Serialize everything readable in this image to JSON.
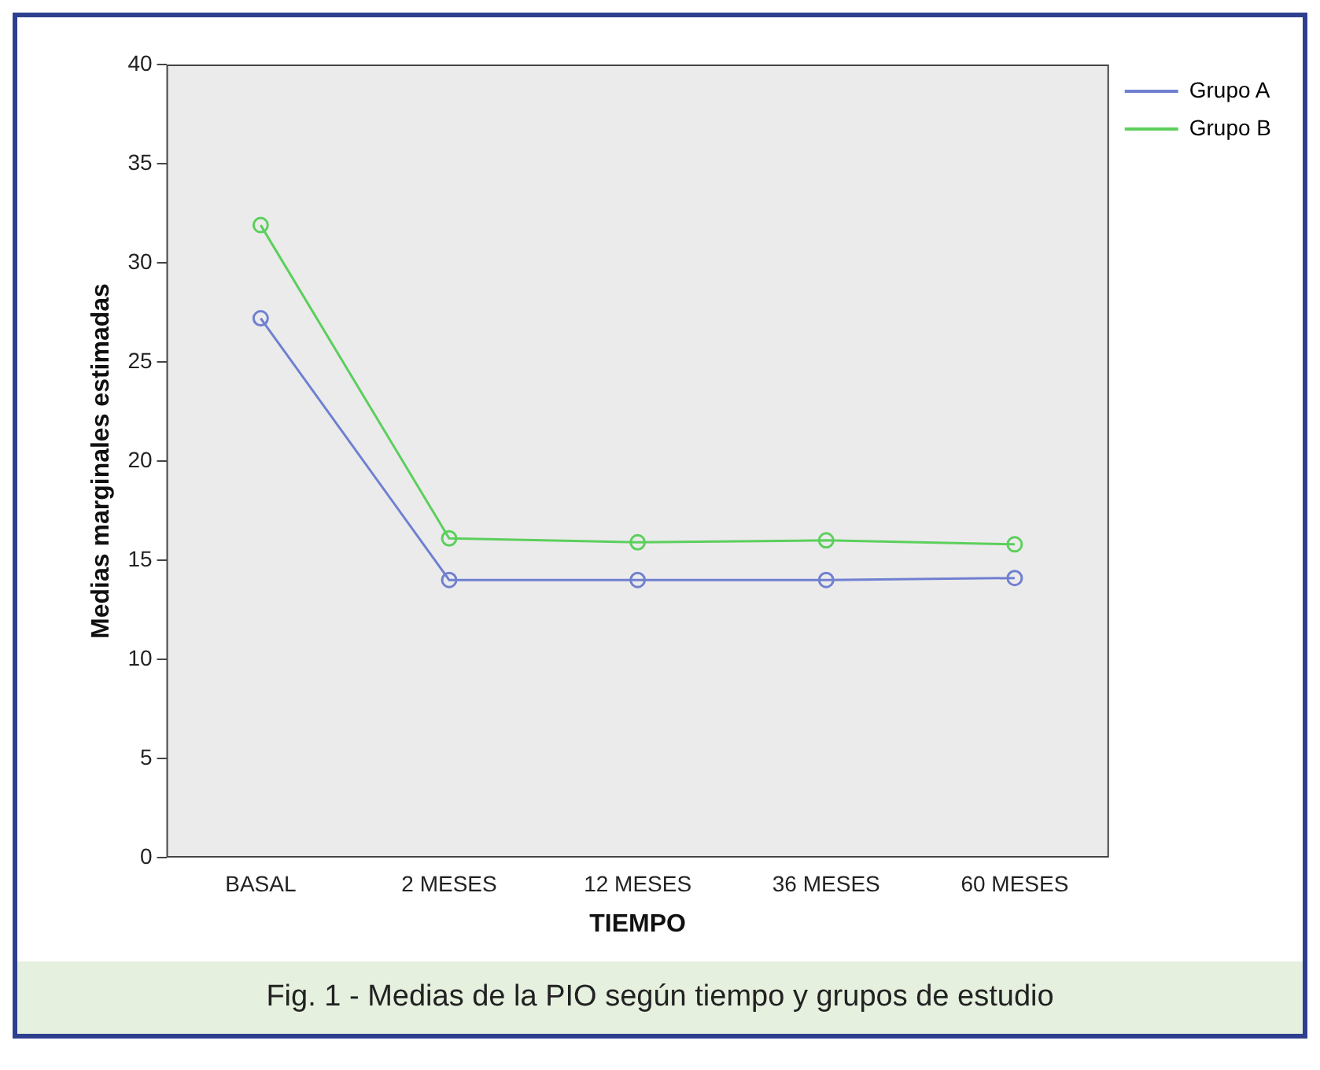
{
  "chart_data": {
    "type": "line",
    "xlabel": "TIEMPO",
    "ylabel": "Medias marginales estimadas",
    "categories": [
      "BASAL",
      "2 MESES",
      "12 MESES",
      "36 MESES",
      "60 MESES"
    ],
    "series": [
      {
        "name": "Grupo A",
        "color": "#7080d0",
        "values": [
          27.2,
          14.0,
          14.0,
          14.0,
          14.1
        ]
      },
      {
        "name": "Grupo B",
        "color": "#5ccf5c",
        "values": [
          31.9,
          16.1,
          15.9,
          16.0,
          15.8
        ]
      }
    ],
    "ylim": [
      0,
      40
    ],
    "yticks": [
      0,
      5,
      10,
      15,
      20,
      25,
      30,
      35,
      40
    ],
    "grid": false,
    "legend": "top right",
    "marker": "circle",
    "line_style": "solid",
    "annotations": [
      "Fig. 1 - Medias de la PIO según tiempo y grupos de estudio"
    ]
  }
}
